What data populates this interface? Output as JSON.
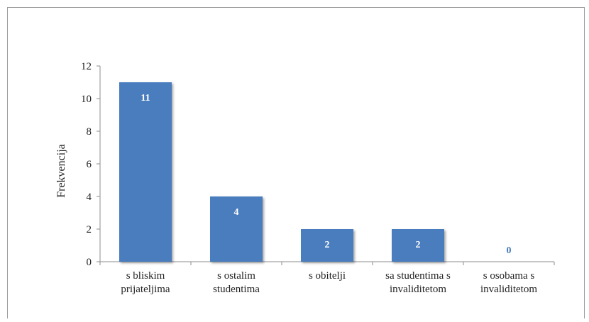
{
  "chart_data": {
    "type": "bar",
    "title": "",
    "xlabel": "",
    "ylabel": "Frekvencija",
    "ylim": [
      0,
      12
    ],
    "yticks": [
      0,
      2,
      4,
      6,
      8,
      10,
      12
    ],
    "grid": false,
    "legend": "none",
    "categories": [
      [
        "s bliskim",
        "prijateljima"
      ],
      [
        "s ostalim",
        "studentima"
      ],
      [
        "s obitelji"
      ],
      [
        "sa studentima s",
        "invaliditetom"
      ],
      [
        "s osobama s",
        "invaliditetom"
      ]
    ],
    "values": [
      11,
      4,
      2,
      2,
      0
    ],
    "data_labels": [
      "11",
      "4",
      "2",
      "2",
      "0"
    ],
    "bar_color": "#4a7dbe",
    "label_color_inside": "#ffffff",
    "label_color_outside": "#4a7dbe"
  }
}
